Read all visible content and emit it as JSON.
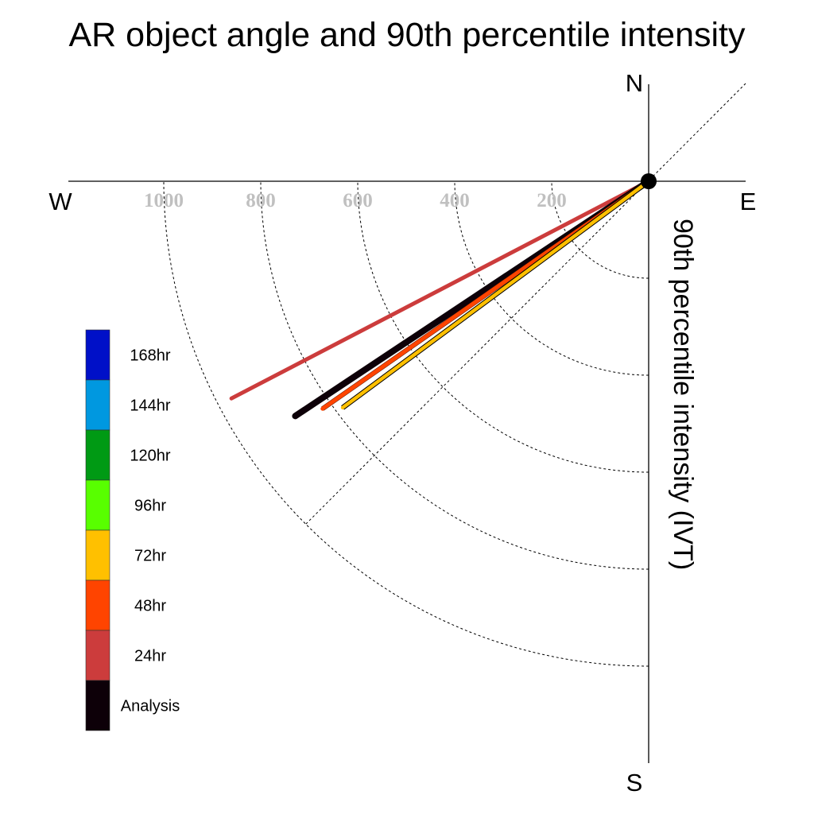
{
  "chart_data": {
    "type": "polar-vector",
    "title": "AR object angle and 90th percentile intensity",
    "axis_label": "90th percentile intensity (IVT)",
    "compass": {
      "n": "N",
      "s": "S",
      "e": "E",
      "w": "W"
    },
    "radial_ticks": [
      1000,
      800,
      600,
      400,
      200
    ],
    "radial_range": [
      0,
      1000
    ],
    "rings": [
      200,
      400,
      600,
      800,
      1000
    ],
    "grid": true,
    "legend_position": "left",
    "legend": [
      {
        "label": "168hr",
        "color": "#0010c8"
      },
      {
        "label": "144hr",
        "color": "#0098e0"
      },
      {
        "label": "120hr",
        "color": "#009a14"
      },
      {
        "label": "96hr",
        "color": "#58ff00"
      },
      {
        "label": "72hr",
        "color": "#ffc000"
      },
      {
        "label": "48hr",
        "color": "#ff4400"
      },
      {
        "label": "24hr",
        "color": "#cc3c3c"
      },
      {
        "label": "Analysis",
        "color": "#0d0008"
      }
    ],
    "series": [
      {
        "name": "24hr",
        "angle_deg": 242.5,
        "intensity": 970,
        "color": "#cc3c3c"
      },
      {
        "name": "Analysis",
        "angle_deg": 236.4,
        "intensity": 875,
        "color": "#0d0008"
      },
      {
        "name": "48hr",
        "angle_deg": 235.1,
        "intensity": 820,
        "color": "#ff4400"
      },
      {
        "name": "72hr",
        "angle_deg": 233.5,
        "intensity": 785,
        "color": "#ffc000"
      }
    ]
  }
}
